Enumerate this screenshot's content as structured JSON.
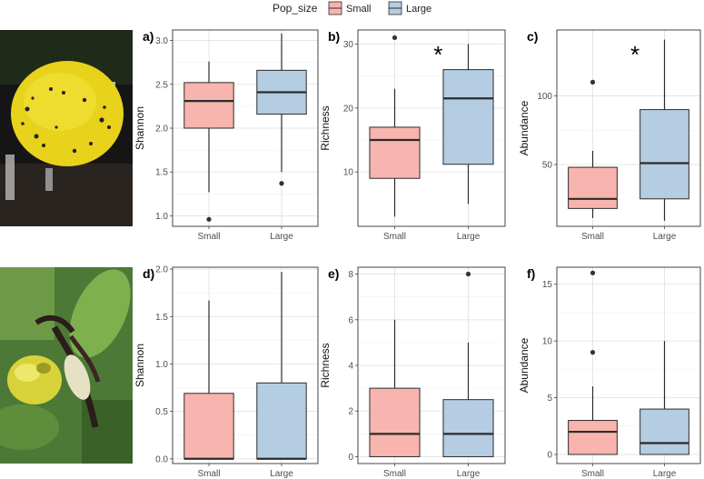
{
  "legend": {
    "title": "Pop_size",
    "entries": [
      {
        "label": "Small",
        "fill": "#F8B4AE"
      },
      {
        "label": "Large",
        "fill": "#B5CDE2"
      }
    ]
  },
  "colors": {
    "small_fill": "#F8B4AE",
    "large_fill": "#B5CDE2",
    "box_stroke": "#2b2b2b",
    "grid_major": "#e3e3e3",
    "grid_minor": "#f1f1f1",
    "panel_border": "#333333",
    "trap_yellow": "#E8D21C",
    "orchid_yellow": "#D8D23A",
    "leaf_green": "#4C7A36"
  },
  "photos": [
    {
      "icon": "yellow-sticky-trap-photo"
    },
    {
      "icon": "lady-slipper-orchid-photo"
    }
  ],
  "chart_data": [
    {
      "type": "box",
      "label": "a)",
      "ylabel": "Shannon",
      "categories": [
        "Small",
        "Large"
      ],
      "ylim": [
        0.88,
        3.12
      ],
      "yticks": [
        1.0,
        1.5,
        2.0,
        2.5,
        3.0
      ],
      "tick_labels": [
        "1.0",
        "1.5",
        "2.0",
        "2.5",
        "3.0"
      ],
      "significance": "",
      "boxes": [
        {
          "name": "Small",
          "whisker_low": 1.27,
          "q1": 2.0,
          "median": 2.31,
          "q3": 2.52,
          "whisker_high": 2.76,
          "outliers": [
            0.96
          ]
        },
        {
          "name": "Large",
          "whisker_low": 1.5,
          "q1": 2.16,
          "median": 2.41,
          "q3": 2.66,
          "whisker_high": 3.08,
          "outliers": [
            1.37
          ]
        }
      ]
    },
    {
      "type": "box",
      "label": "b)",
      "ylabel": "Richness",
      "categories": [
        "Small",
        "Large"
      ],
      "ylim": [
        1.5,
        32.2
      ],
      "yticks": [
        10,
        20,
        30
      ],
      "tick_labels": [
        "10",
        "20",
        "30"
      ],
      "significance": "*",
      "boxes": [
        {
          "name": "Small",
          "whisker_low": 3,
          "q1": 9,
          "median": 15,
          "q3": 17,
          "whisker_high": 23,
          "outliers": [
            31
          ]
        },
        {
          "name": "Large",
          "whisker_low": 5,
          "q1": 11.2,
          "median": 21.5,
          "q3": 26,
          "whisker_high": 30,
          "outliers": []
        }
      ]
    },
    {
      "type": "box",
      "label": "c)",
      "ylabel": "Abundance",
      "categories": [
        "Small",
        "Large"
      ],
      "ylim": [
        5,
        148
      ],
      "yticks": [
        50,
        100
      ],
      "tick_labels": [
        "50",
        "100"
      ],
      "significance": "*",
      "boxes": [
        {
          "name": "Small",
          "whisker_low": 11,
          "q1": 18,
          "median": 25,
          "q3": 48,
          "whisker_high": 60,
          "outliers": [
            110
          ]
        },
        {
          "name": "Large",
          "whisker_low": 9,
          "q1": 25,
          "median": 51,
          "q3": 90,
          "whisker_high": 141,
          "outliers": []
        }
      ]
    },
    {
      "type": "box",
      "label": "d)",
      "ylabel": "Shannon",
      "categories": [
        "Small",
        "Large"
      ],
      "ylim": [
        -0.05,
        2.02
      ],
      "yticks": [
        0.0,
        0.5,
        1.0,
        1.5,
        2.0
      ],
      "tick_labels": [
        "0.0",
        "0.5",
        "1.0",
        "1.5",
        "2.0"
      ],
      "significance": "",
      "boxes": [
        {
          "name": "Small",
          "whisker_low": 0,
          "q1": 0,
          "median": 0,
          "q3": 0.69,
          "whisker_high": 1.67,
          "outliers": []
        },
        {
          "name": "Large",
          "whisker_low": 0,
          "q1": 0,
          "median": 0,
          "q3": 0.8,
          "whisker_high": 1.97,
          "outliers": []
        }
      ]
    },
    {
      "type": "box",
      "label": "e)",
      "ylabel": "Richness",
      "categories": [
        "Small",
        "Large"
      ],
      "ylim": [
        -0.3,
        8.3
      ],
      "yticks": [
        0,
        2,
        4,
        6,
        8
      ],
      "tick_labels": [
        "0",
        "2",
        "4",
        "6",
        "8"
      ],
      "significance": "",
      "boxes": [
        {
          "name": "Small",
          "whisker_low": 0,
          "q1": 0,
          "median": 1,
          "q3": 3,
          "whisker_high": 6,
          "outliers": []
        },
        {
          "name": "Large",
          "whisker_low": 0,
          "q1": 0,
          "median": 1,
          "q3": 2.5,
          "whisker_high": 5,
          "outliers": [
            8
          ]
        }
      ]
    },
    {
      "type": "box",
      "label": "f)",
      "ylabel": "Abundance",
      "categories": [
        "Small",
        "Large"
      ],
      "ylim": [
        -0.8,
        16.5
      ],
      "yticks": [
        0,
        5,
        10,
        15
      ],
      "tick_labels": [
        "0",
        "5",
        "10",
        "15"
      ],
      "significance": "",
      "boxes": [
        {
          "name": "Small",
          "whisker_low": 0,
          "q1": 0,
          "median": 2,
          "q3": 3,
          "whisker_high": 6,
          "outliers": [
            9,
            16
          ]
        },
        {
          "name": "Large",
          "whisker_low": 0,
          "q1": 0,
          "median": 1,
          "q3": 4,
          "whisker_high": 10,
          "outliers": []
        }
      ]
    }
  ]
}
